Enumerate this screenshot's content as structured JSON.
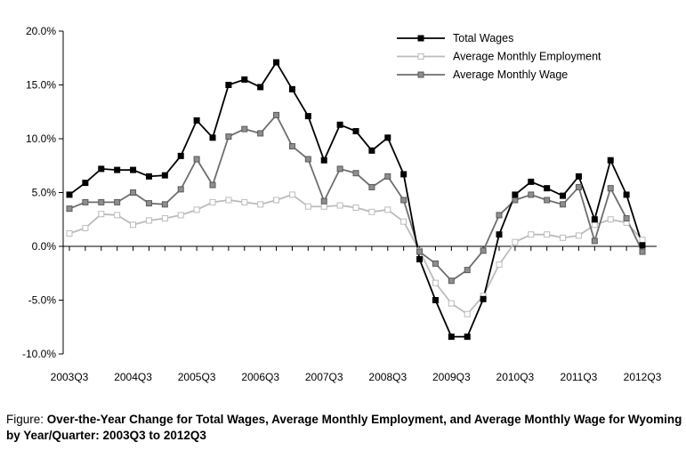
{
  "caption": {
    "prefix": "Figure:",
    "text": "Over-the-Year Change for Total Wages, Average Monthly Employment, and Average Monthly Wage for Wyoming by Year/Quarter: 2003Q3 to 2012Q3"
  },
  "chart_data": {
    "type": "line",
    "title": "",
    "xlabel": "",
    "ylabel": "",
    "ylim": [
      -10,
      20
    ],
    "yticks": [
      -10,
      -5,
      0,
      5,
      10,
      15,
      20
    ],
    "ytick_labels": [
      "-10.0%",
      "-5.0%",
      "0.0%",
      "5.0%",
      "10.0%",
      "15.0%",
      "20.0%"
    ],
    "x": [
      "2003Q3",
      "2003Q4",
      "2004Q1",
      "2004Q2",
      "2004Q3",
      "2004Q4",
      "2005Q1",
      "2005Q2",
      "2005Q3",
      "2005Q4",
      "2006Q1",
      "2006Q2",
      "2006Q3",
      "2006Q4",
      "2007Q1",
      "2007Q2",
      "2007Q3",
      "2007Q4",
      "2008Q1",
      "2008Q2",
      "2008Q3",
      "2008Q4",
      "2009Q1",
      "2009Q2",
      "2009Q3",
      "2009Q4",
      "2010Q1",
      "2010Q2",
      "2010Q3",
      "2010Q4",
      "2011Q1",
      "2011Q2",
      "2011Q3",
      "2011Q4",
      "2012Q1",
      "2012Q2",
      "2012Q3"
    ],
    "xtick_labels": [
      "2003Q3",
      "2004Q3",
      "2005Q3",
      "2006Q3",
      "2007Q3",
      "2008Q3",
      "2009Q3",
      "2010Q3",
      "2011Q3",
      "2012Q3"
    ],
    "grid": false,
    "legend_position": "top-right",
    "series": [
      {
        "name": "Total Wages",
        "color": "#000000",
        "marker": "filled-square",
        "values": [
          4.8,
          5.9,
          7.2,
          7.1,
          7.1,
          6.5,
          6.6,
          8.4,
          11.7,
          10.1,
          15.0,
          15.5,
          14.8,
          17.1,
          14.6,
          12.1,
          8.0,
          11.3,
          10.7,
          8.9,
          10.1,
          6.7,
          -1.2,
          -5.0,
          -8.4,
          -8.4,
          -4.9,
          1.1,
          4.8,
          6.0,
          5.4,
          4.7,
          6.5,
          2.5,
          8.0,
          4.8,
          0.1
        ]
      },
      {
        "name": "Average Monthly Employment",
        "color": "#bbbbbb",
        "marker": "open-square",
        "values": [
          1.2,
          1.7,
          3.0,
          2.9,
          2.0,
          2.4,
          2.6,
          2.9,
          3.4,
          4.1,
          4.3,
          4.1,
          3.9,
          4.3,
          4.8,
          3.7,
          3.7,
          3.8,
          3.6,
          3.2,
          3.4,
          2.3,
          -0.4,
          -3.4,
          -5.3,
          -6.3,
          -4.6,
          -1.7,
          0.4,
          1.1,
          1.1,
          0.8,
          1.0,
          2.0,
          2.5,
          2.2,
          0.6
        ]
      },
      {
        "name": "Average Monthly Wage",
        "color": "#6e6e6e",
        "marker": "gray-square",
        "values": [
          3.5,
          4.1,
          4.1,
          4.1,
          5.0,
          4.0,
          3.9,
          5.3,
          8.1,
          5.7,
          10.2,
          10.9,
          10.5,
          12.2,
          9.3,
          8.1,
          4.2,
          7.2,
          6.8,
          5.5,
          6.5,
          4.3,
          -0.5,
          -1.6,
          -3.2,
          -2.2,
          -0.4,
          2.9,
          4.3,
          4.8,
          4.3,
          3.9,
          5.5,
          0.5,
          5.4,
          2.6,
          -0.5
        ]
      }
    ]
  }
}
